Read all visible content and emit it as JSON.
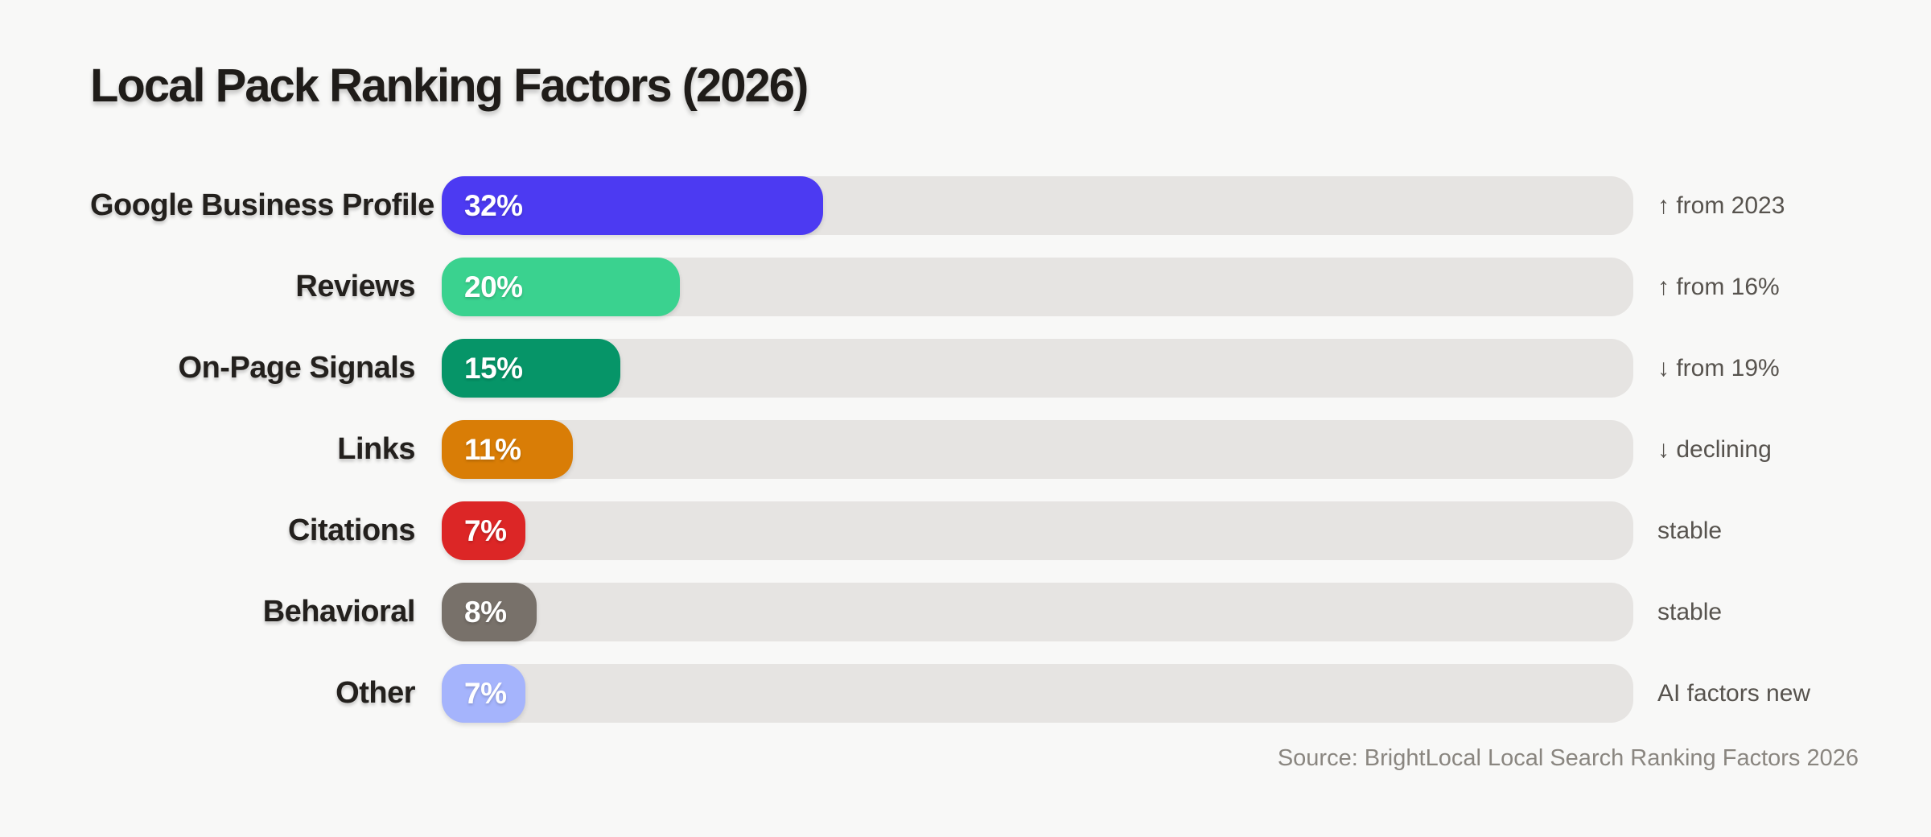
{
  "title": "Local Pack Ranking Factors (2026)",
  "source": "Source: BrightLocal Local Search Ranking Factors 2026",
  "colors": {
    "page_background": "#f8f8f7",
    "track_background": "#e6e4e2",
    "title_text": "#1f1c19",
    "label_text": "#23201d",
    "note_text": "#57534e",
    "source_text": "#8a8680",
    "bar_value_text": "#ffffff"
  },
  "chart_data": {
    "type": "bar",
    "orientation": "horizontal",
    "title": "Local Pack Ranking Factors (2026)",
    "categories": [
      "Google Business Profile",
      "Reviews",
      "On-Page Signals",
      "Links",
      "Citations",
      "Behavioral",
      "Other"
    ],
    "values": [
      32,
      20,
      15,
      11,
      7,
      8,
      7
    ],
    "value_labels": [
      "32%",
      "20%",
      "15%",
      "11%",
      "7%",
      "8%",
      "7%"
    ],
    "bar_colors": [
      "#4c3af2",
      "#3ad28f",
      "#069568",
      "#d97d06",
      "#dc2626",
      "#78716a",
      "#a5b4fc"
    ],
    "annotations": [
      "↑ from 2023",
      "↑ from 16%",
      "↓ from 19%",
      "↓ declining",
      "stable",
      "stable",
      "AI factors new"
    ],
    "xlabel": "",
    "ylabel": "",
    "xlim": [
      0,
      100
    ],
    "grid": false,
    "legend": "none",
    "source": "Source: BrightLocal Local Search Ranking Factors 2026"
  }
}
